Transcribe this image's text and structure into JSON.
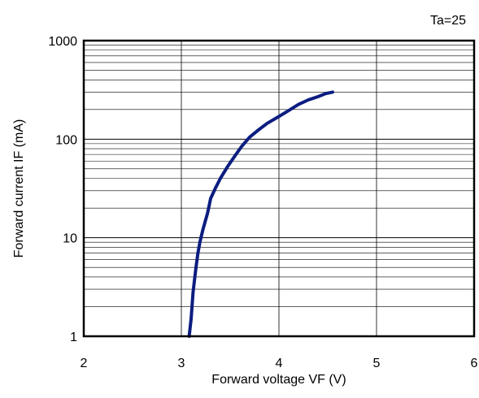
{
  "chart_data": {
    "type": "line",
    "title": "",
    "annotation": "Ta=25",
    "xlabel": "Forward voltage VF (V)",
    "ylabel": "Forward current   IF   (mA)",
    "xlim": [
      2,
      6
    ],
    "ylim": [
      1,
      1000
    ],
    "yscale": "log",
    "grid": true,
    "x_ticks": [
      "2",
      "3",
      "4",
      "5",
      "6"
    ],
    "y_ticks": [
      "1",
      "10",
      "100",
      "1000"
    ],
    "series": [
      {
        "color": "#0c1d80",
        "x": [
          3.08,
          3.1,
          3.12,
          3.15,
          3.17,
          3.19,
          3.22,
          3.27,
          3.3,
          3.35,
          3.4,
          3.47,
          3.55,
          3.62,
          3.7,
          3.78,
          3.88,
          4.0,
          4.1,
          4.2,
          4.3,
          4.4,
          4.48,
          4.55
        ],
        "y": [
          1,
          1.5,
          2.8,
          5,
          7,
          9,
          12,
          18,
          25,
          32,
          40,
          52,
          68,
          85,
          105,
          122,
          145,
          170,
          195,
          225,
          250,
          270,
          290,
          300
        ]
      }
    ]
  }
}
